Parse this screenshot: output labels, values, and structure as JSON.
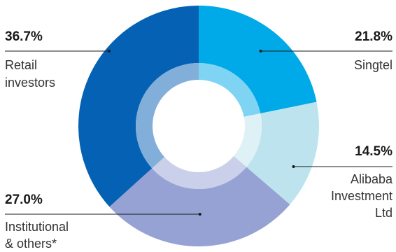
{
  "chart_data": {
    "type": "donut",
    "title": "",
    "slices": [
      {
        "label": "Singtel",
        "value": 21.8,
        "value_label": "21.8%",
        "color": "#00a9e8",
        "inner_color": "#7fd3f3"
      },
      {
        "label": "Alibaba Investment Ltd",
        "value": 14.5,
        "value_label": "14.5%",
        "color": "#bde4ee",
        "inner_color": "#def1f6"
      },
      {
        "label": "Institutional & others*",
        "value": 27.0,
        "value_label": "27.0%",
        "color": "#96a2d3",
        "inner_color": "#cad0e9"
      },
      {
        "label": "Retail investors",
        "value": 36.7,
        "value_label": "36.7%",
        "color": "#0461b4",
        "inner_color": "#81afd9"
      }
    ]
  },
  "labels": {
    "singtel": {
      "pct": "21.8%",
      "lines": [
        "Singtel"
      ]
    },
    "alibaba": {
      "pct": "14.5%",
      "lines": [
        "Alibaba",
        "Investment",
        "Ltd"
      ]
    },
    "institutional": {
      "pct": "27.0%",
      "lines": [
        "Institutional",
        "& others*"
      ]
    },
    "retail": {
      "pct": "36.7%",
      "lines": [
        "Retail",
        "investors"
      ]
    }
  }
}
